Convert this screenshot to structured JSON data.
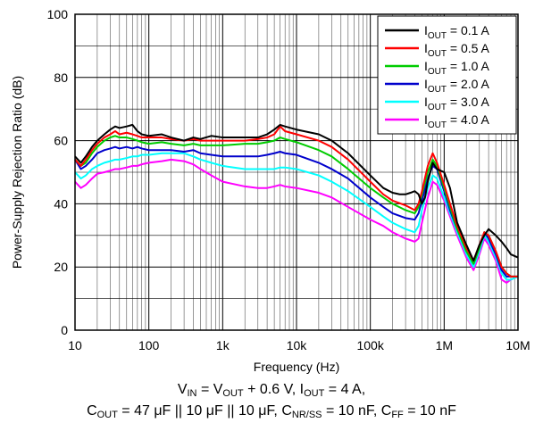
{
  "chart_data": {
    "type": "line",
    "xlabel": "Frequency (Hz)",
    "ylabel": "Power-Supply Rejection Ratio (dB)",
    "xscale": "log",
    "xlim": [
      10,
      10000000
    ],
    "ylim": [
      0,
      100
    ],
    "x_ticks": [
      {
        "value": 10,
        "label": "10"
      },
      {
        "value": 100,
        "label": "100"
      },
      {
        "value": 1000,
        "label": "1k"
      },
      {
        "value": 10000,
        "label": "10k"
      },
      {
        "value": 100000,
        "label": "100k"
      },
      {
        "value": 1000000,
        "label": "1M"
      },
      {
        "value": 10000000,
        "label": "10M"
      }
    ],
    "y_ticks": [
      {
        "value": 0,
        "label": "0"
      },
      {
        "value": 20,
        "label": "20"
      },
      {
        "value": 40,
        "label": "40"
      },
      {
        "value": 60,
        "label": "60"
      },
      {
        "value": 80,
        "label": "80"
      },
      {
        "value": 100,
        "label": "100"
      }
    ],
    "grid": true,
    "legend_position": "top-right",
    "series": [
      {
        "name_main": "I",
        "name_sub": "OUT",
        "name_rest": " = 0.1 A",
        "color": "#000000",
        "x": [
          10,
          12,
          14,
          17,
          20,
          25,
          30,
          35,
          40,
          50,
          60,
          70,
          80,
          100,
          150,
          200,
          300,
          400,
          500,
          700,
          1000,
          2000,
          3000,
          4000,
          5000,
          6000,
          7000,
          10000,
          20000,
          30000,
          50000,
          100000,
          150000,
          200000,
          250000,
          300000,
          350000,
          400000,
          450000,
          500000,
          550000,
          600000,
          700000,
          800000,
          1000000,
          1200000,
          1500000,
          2000000,
          2500000,
          3000000,
          3500000,
          4000000,
          5000000,
          6000000,
          7000000,
          8000000,
          10000000
        ],
        "y": [
          55,
          53,
          55,
          58,
          60,
          62,
          63.5,
          64.5,
          64,
          64.5,
          65,
          63,
          62,
          61.5,
          62,
          61,
          60,
          61,
          60.5,
          61.5,
          61,
          61,
          61,
          62,
          63.5,
          65,
          64.5,
          63.5,
          62,
          60,
          56,
          49,
          45,
          43.5,
          43,
          43,
          43.5,
          44,
          43,
          40,
          42,
          47,
          53,
          51,
          50,
          45,
          34,
          27,
          22,
          27,
          30,
          32,
          30,
          28,
          26,
          24,
          23
        ]
      },
      {
        "name_main": "I",
        "name_sub": "OUT",
        "name_rest": " = 0.5 A",
        "color": "#ff0000",
        "x": [
          10,
          12,
          14,
          17,
          20,
          25,
          30,
          35,
          40,
          50,
          60,
          70,
          80,
          100,
          150,
          200,
          300,
          400,
          500,
          700,
          1000,
          2000,
          3000,
          4000,
          5000,
          6000,
          7000,
          10000,
          20000,
          30000,
          50000,
          100000,
          150000,
          200000,
          300000,
          400000,
          450000,
          500000,
          600000,
          700000,
          800000,
          1000000,
          1200000,
          1500000,
          2000000,
          2500000,
          3000000,
          3500000,
          4000000,
          5000000,
          6000000,
          7000000,
          8000000,
          10000000
        ],
        "y": [
          54,
          52,
          54,
          57,
          59,
          61,
          62,
          63,
          62,
          62.5,
          62,
          61.5,
          61,
          61,
          61,
          60.5,
          60,
          60.5,
          60,
          60,
          60,
          60,
          60.5,
          61,
          62,
          64.5,
          63,
          62,
          60,
          58,
          54,
          47,
          43,
          41,
          39.5,
          38,
          40,
          44,
          52,
          56,
          53,
          46,
          40,
          33,
          26,
          22,
          27,
          31,
          30,
          25,
          20,
          18,
          17,
          17
        ]
      },
      {
        "name_main": "I",
        "name_sub": "OUT",
        "name_rest": " = 1.0 A",
        "color": "#00cc00",
        "x": [
          10,
          12,
          14,
          17,
          20,
          25,
          30,
          35,
          40,
          50,
          60,
          70,
          80,
          100,
          150,
          200,
          300,
          400,
          500,
          700,
          1000,
          2000,
          3000,
          4000,
          5000,
          6000,
          7000,
          10000,
          20000,
          30000,
          50000,
          100000,
          150000,
          200000,
          300000,
          400000,
          450000,
          500000,
          600000,
          700000,
          800000,
          1000000,
          1200000,
          1500000,
          2000000,
          2500000,
          3000000,
          3500000,
          4000000,
          5000000,
          6000000,
          7000000,
          8000000,
          10000000
        ],
        "y": [
          54,
          52,
          53,
          56,
          58,
          60,
          61,
          61.5,
          61,
          61,
          60.5,
          60,
          59.5,
          59,
          59.5,
          59,
          58.5,
          59,
          58.5,
          58.5,
          58.5,
          59,
          59,
          59.5,
          60,
          61,
          60.5,
          59.5,
          57,
          55,
          51,
          45,
          42,
          40,
          38,
          37,
          39,
          43,
          50,
          54,
          52,
          45,
          39,
          32,
          25,
          21,
          26,
          31,
          30,
          25,
          20,
          18,
          17,
          17
        ]
      },
      {
        "name_main": "I",
        "name_sub": "OUT",
        "name_rest": " = 2.0 A",
        "color": "#0000cc",
        "x": [
          10,
          12,
          14,
          17,
          20,
          25,
          30,
          35,
          40,
          50,
          60,
          70,
          80,
          100,
          150,
          200,
          300,
          400,
          500,
          700,
          1000,
          2000,
          3000,
          4000,
          5000,
          6000,
          7000,
          10000,
          20000,
          30000,
          50000,
          100000,
          150000,
          200000,
          300000,
          400000,
          450000,
          500000,
          600000,
          700000,
          800000,
          1000000,
          1200000,
          1500000,
          2000000,
          2500000,
          3000000,
          3500000,
          4000000,
          5000000,
          6000000,
          7000000,
          8000000,
          10000000
        ],
        "y": [
          54,
          51,
          52,
          54,
          56,
          57,
          57.5,
          58,
          57.5,
          58,
          57.5,
          58,
          57.5,
          57,
          57,
          57,
          56.5,
          57,
          56,
          55.5,
          55,
          55,
          55,
          55.5,
          56,
          56.5,
          56,
          55.5,
          53,
          51,
          48,
          42,
          39,
          37,
          35.5,
          35,
          37,
          41,
          48,
          52,
          51,
          44,
          38,
          32,
          25,
          21,
          26,
          31,
          29,
          24,
          19,
          17,
          17,
          17
        ]
      },
      {
        "name_main": "I",
        "name_sub": "OUT",
        "name_rest": " = 3.0 A",
        "color": "#00ffff",
        "x": [
          10,
          12,
          14,
          17,
          20,
          25,
          30,
          35,
          40,
          50,
          60,
          70,
          80,
          100,
          150,
          200,
          300,
          400,
          500,
          700,
          1000,
          2000,
          3000,
          4000,
          5000,
          6000,
          7000,
          10000,
          20000,
          30000,
          50000,
          100000,
          150000,
          200000,
          300000,
          400000,
          450000,
          500000,
          600000,
          700000,
          800000,
          1000000,
          1200000,
          1500000,
          2000000,
          2500000,
          3000000,
          3500000,
          4000000,
          5000000,
          6000000,
          7000000,
          8000000,
          10000000
        ],
        "y": [
          50,
          48,
          49,
          51,
          52,
          53,
          53.5,
          54,
          54,
          54.5,
          55,
          55,
          55.5,
          55.5,
          56,
          56,
          56,
          55,
          54,
          53,
          52,
          51,
          51,
          51,
          51,
          51.5,
          51.5,
          51,
          49,
          47,
          44,
          39,
          36,
          34,
          32,
          31,
          33,
          38,
          45,
          49,
          48,
          42,
          37,
          31,
          24,
          20,
          25,
          30,
          28,
          23,
          18,
          16,
          16,
          17
        ]
      },
      {
        "name_main": "I",
        "name_sub": "OUT",
        "name_rest": " = 4.0 A",
        "color": "#ff00ff",
        "x": [
          10,
          12,
          14,
          17,
          20,
          25,
          30,
          35,
          40,
          50,
          60,
          70,
          80,
          100,
          150,
          200,
          300,
          400,
          500,
          700,
          1000,
          2000,
          3000,
          4000,
          5000,
          6000,
          7000,
          10000,
          20000,
          30000,
          50000,
          100000,
          150000,
          200000,
          300000,
          400000,
          450000,
          500000,
          600000,
          700000,
          800000,
          1000000,
          1200000,
          1500000,
          2000000,
          2500000,
          3000000,
          3500000,
          4000000,
          5000000,
          6000000,
          7000000,
          8000000,
          10000000
        ],
        "y": [
          47,
          45,
          46,
          48,
          49.5,
          50,
          50.5,
          51,
          51,
          51.5,
          52,
          52,
          52.5,
          53,
          53.5,
          54,
          53.5,
          52.5,
          51,
          49,
          47,
          45.5,
          45,
          45,
          45.5,
          46,
          45.5,
          45,
          43.5,
          42,
          39,
          35,
          33,
          31,
          29,
          28,
          29,
          34,
          42,
          47,
          46,
          41,
          36,
          30,
          23,
          19,
          24,
          29,
          27,
          22,
          16,
          15,
          16,
          17
        ]
      }
    ]
  },
  "caption": {
    "line1": [
      {
        "t": "V"
      },
      {
        "sub": "IN"
      },
      {
        "t": " = V"
      },
      {
        "sub": "OUT"
      },
      {
        "t": " + 0.6 V, I"
      },
      {
        "sub": "OUT"
      },
      {
        "t": " = 4 A,"
      }
    ],
    "line2": [
      {
        "t": "C"
      },
      {
        "sub": "OUT"
      },
      {
        "t": " = 47 μF || 10 μF || 10 μF, C"
      },
      {
        "sub": "NR/SS"
      },
      {
        "t": " = 10 nF, C"
      },
      {
        "sub": "FF"
      },
      {
        "t": " = 10 nF"
      }
    ]
  }
}
